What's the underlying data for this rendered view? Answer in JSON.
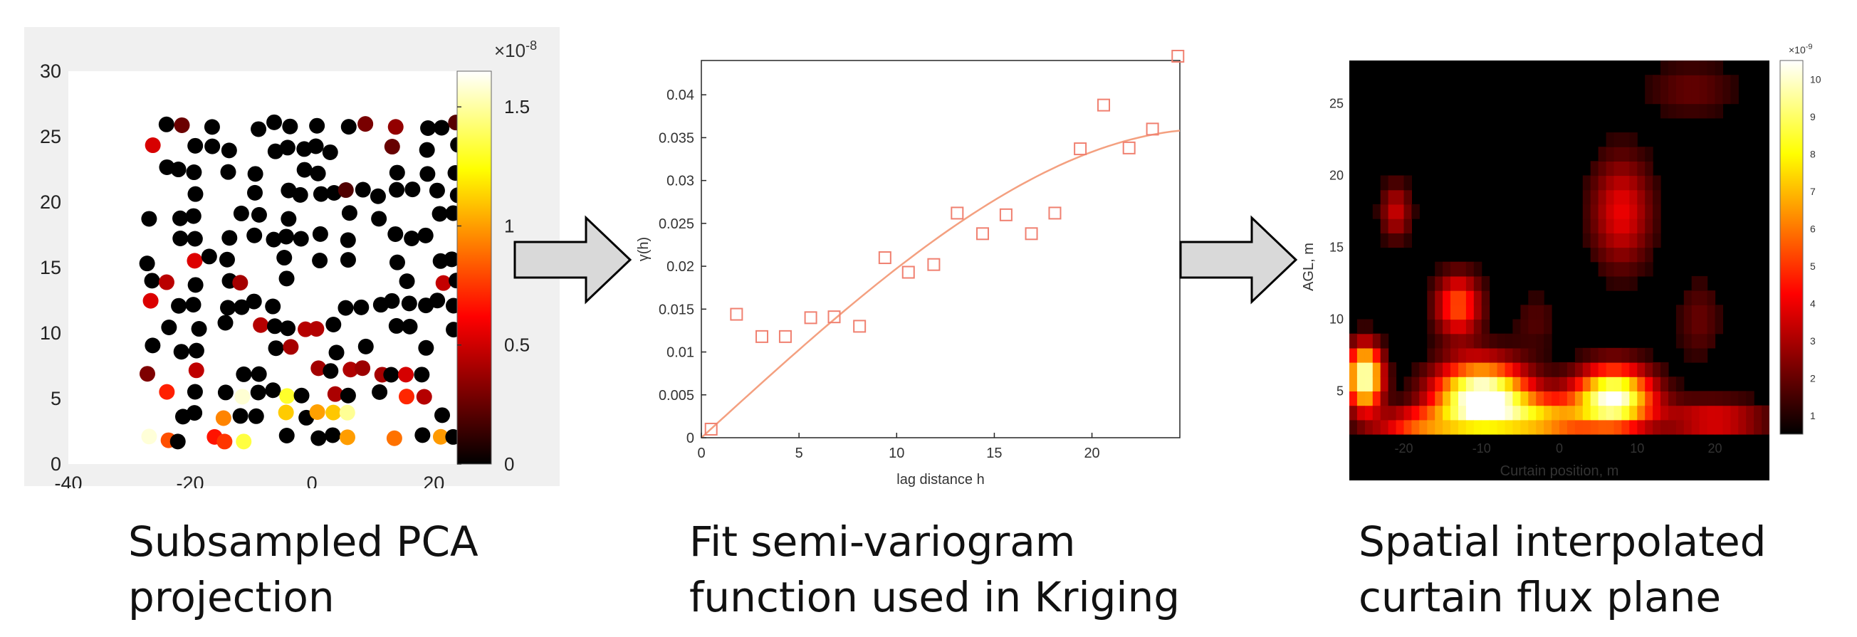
{
  "panels": [
    {
      "caption": [
        "Subsampled PCA",
        "projection"
      ],
      "chart": {
        "type": "scatter",
        "xlim": [
          -40,
          25
        ],
        "ylim": [
          0,
          30
        ],
        "xticks": [
          "-40",
          "-20",
          "0",
          "20"
        ],
        "yticks": [
          "0",
          "5",
          "10",
          "15",
          "20",
          "25",
          "30"
        ],
        "colorbar": {
          "exponent": "×10",
          "exponent_power": "-8",
          "ticks": [
            "0",
            "0.5",
            "1",
            "1.5"
          ],
          "max": 1.65
        },
        "background": "#f0f0f0",
        "colormap": "hot"
      }
    },
    {
      "caption": [
        "Fit semi-variogram",
        "function used in Kriging"
      ],
      "chart": {
        "type": "scatter",
        "xlabel": "lag distance h",
        "ylabel": "γ(h)",
        "xlim": [
          0,
          24.5
        ],
        "ylim": [
          0,
          0.044
        ],
        "xticks": [
          "0",
          "5",
          "10",
          "15",
          "20"
        ],
        "yticks": [
          "0",
          "0.005",
          "0.01",
          "0.015",
          "0.02",
          "0.025",
          "0.03",
          "0.035",
          "0.04"
        ],
        "marker_color": "#f08070",
        "points": [
          [
            0.5,
            0.001
          ],
          [
            1.8,
            0.0144
          ],
          [
            3.1,
            0.0118
          ],
          [
            4.3,
            0.0118
          ],
          [
            5.6,
            0.014
          ],
          [
            6.8,
            0.0141
          ],
          [
            8.1,
            0.013
          ],
          [
            9.4,
            0.021
          ],
          [
            10.6,
            0.0193
          ],
          [
            11.9,
            0.0202
          ],
          [
            13.1,
            0.0262
          ],
          [
            14.4,
            0.0238
          ],
          [
            15.6,
            0.026
          ],
          [
            16.9,
            0.0238
          ],
          [
            18.1,
            0.0262
          ],
          [
            19.4,
            0.0337
          ],
          [
            20.6,
            0.0388
          ],
          [
            21.9,
            0.0338
          ],
          [
            23.1,
            0.036
          ],
          [
            24.4,
            0.0445
          ]
        ],
        "fit_curve": {
          "model": "spherical",
          "sill": 0.036,
          "range": 26,
          "nugget": 0
        }
      }
    },
    {
      "caption": [
        "Spatial interpolated",
        "curtain flux plane"
      ],
      "chart": {
        "type": "heatmap",
        "xlabel": "Curtain position, m",
        "ylabel": "AGL, m",
        "xlim": [
          -27,
          27
        ],
        "ylim": [
          2,
          28
        ],
        "xticks": [
          "-20",
          "-10",
          "0",
          "10",
          "20"
        ],
        "yticks": [
          "5",
          "10",
          "15",
          "20",
          "25"
        ],
        "colorbar": {
          "exponent": "×10",
          "exponent_power": "-9",
          "ticks": [
            "1",
            "2",
            "3",
            "4",
            "5",
            "6",
            "7",
            "8",
            "9",
            "10"
          ]
        },
        "colormap": "hot"
      }
    }
  ]
}
